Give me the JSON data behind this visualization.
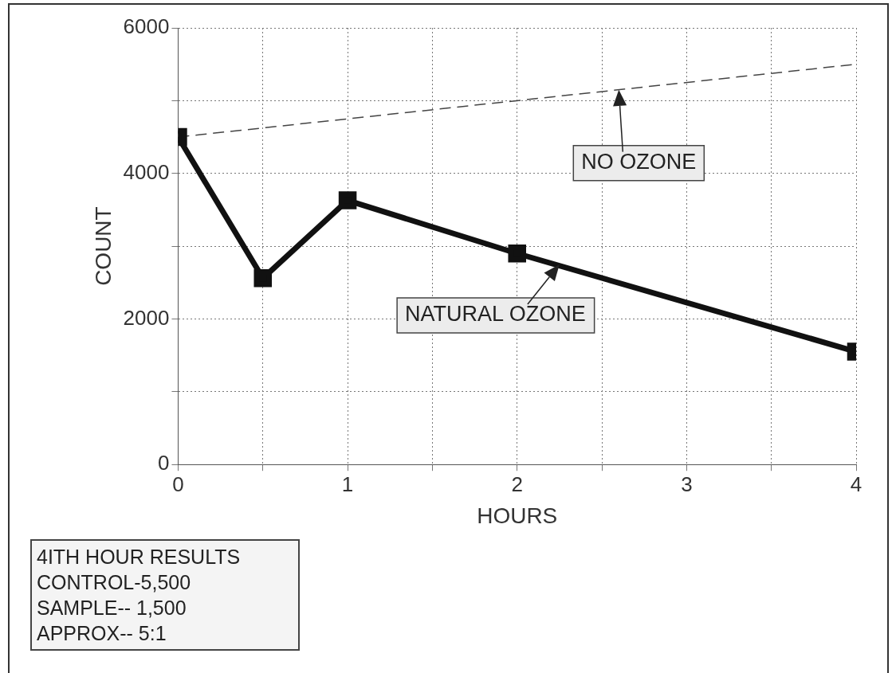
{
  "chart_data": {
    "type": "line",
    "xlabel": "HOURS",
    "ylabel": "COUNT",
    "xlim": [
      0,
      4
    ],
    "xticks": [
      0,
      {
        "value": 0.5,
        "label": null
      },
      1,
      {
        "value": 1.5,
        "label": null
      },
      2,
      {
        "value": 2.5,
        "label": null
      },
      3,
      {
        "value": 3.5,
        "label": null
      },
      4
    ],
    "ylim": [
      0,
      6000
    ],
    "yticks": [
      0,
      {
        "value": 1000,
        "label": null
      },
      2000,
      {
        "value": 3000,
        "label": null
      },
      4000,
      {
        "value": 5000,
        "label": null
      },
      6000
    ],
    "grid": true,
    "series": [
      {
        "color": "#111111",
        "x": [
          0,
          0.5,
          1,
          2,
          4
        ],
        "values": [
          4500,
          2560,
          3630,
          2900,
          1550
        ],
        "marker": "square",
        "line_style": "solid"
      },
      {
        "color": "#444444",
        "x": [
          0,
          4
        ],
        "values": [
          4500,
          5500
        ],
        "marker": "none",
        "line_style": "dashed"
      }
    ],
    "annotations": [
      {
        "text": "NO OZONE",
        "x": 2.6,
        "y": 5150
      },
      {
        "text": "NATURAL OZONE",
        "x": 2.25,
        "y": 2750
      },
      "4ITH HOUR RESULTS",
      "CONTROL-5,500",
      "SAMPLE-- 1,500",
      "APPROX-- 5:1"
    ]
  }
}
